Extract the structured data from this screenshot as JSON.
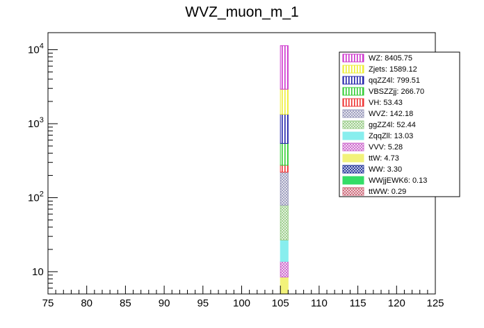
{
  "chart_data": {
    "type": "bar",
    "stacked": true,
    "title": "WVZ_muon_m_1",
    "xlabel": "",
    "ylabel": "",
    "xlim": [
      75,
      125
    ],
    "ylim": [
      5,
      17000
    ],
    "yscale": "log",
    "grid": false,
    "legend_position": "top-right",
    "bin": [
      105,
      106
    ],
    "x_ticks": [
      "75",
      "80",
      "85",
      "90",
      "95",
      "100",
      "105",
      "110",
      "115",
      "120",
      "125"
    ],
    "y_ticks": [
      {
        "value": 10,
        "base": "10",
        "exp": ""
      },
      {
        "value": 100,
        "base": "10",
        "exp": "2"
      },
      {
        "value": 1000,
        "base": "10",
        "exp": "3"
      },
      {
        "value": 10000,
        "base": "10",
        "exp": "4"
      }
    ],
    "series": [
      {
        "name": "ttWW",
        "label": "ttWW: 0.29",
        "value": 0.29,
        "color": "#cc6677",
        "pattern": "cross"
      },
      {
        "name": "WWjjEWK6",
        "label": "WWjjEWK6: 0.13",
        "value": 0.13,
        "color": "#33dd66",
        "pattern": "solid"
      },
      {
        "name": "WW",
        "label": "WW: 3.30",
        "value": 3.3,
        "color": "#223399",
        "pattern": "cross"
      },
      {
        "name": "ttW",
        "label": "ttW: 4.73",
        "value": 4.73,
        "color": "#f2f27a",
        "pattern": "solid"
      },
      {
        "name": "VVV",
        "label": "VVV: 5.28",
        "value": 5.28,
        "color": "#cc66cc",
        "pattern": "cross"
      },
      {
        "name": "ZqqZll",
        "label": "ZqqZll: 13.03",
        "value": 13.03,
        "color": "#88eeee",
        "pattern": "solid"
      },
      {
        "name": "ggZZ4l",
        "label": "ggZZ4l: 52.44",
        "value": 52.44,
        "color": "#99cc88",
        "pattern": "cross"
      },
      {
        "name": "WVZ",
        "label": "WVZ: 142.18",
        "value": 142.18,
        "color": "#9999bb",
        "pattern": "cross"
      },
      {
        "name": "VH",
        "label": "VH: 53.43",
        "value": 53.43,
        "color": "#ee3333",
        "pattern": "vertical"
      },
      {
        "name": "VBSZZjj",
        "label": "VBSZZjj: 266.70",
        "value": 266.7,
        "color": "#33cc33",
        "pattern": "vertical"
      },
      {
        "name": "qqZZ4l",
        "label": "qqZZ4l: 799.51",
        "value": 799.51,
        "color": "#2222aa",
        "pattern": "vertical"
      },
      {
        "name": "Zjets",
        "label": "Zjets: 1589.12",
        "value": 1589.12,
        "color": "#eeee33",
        "pattern": "vertical"
      },
      {
        "name": "WZ",
        "label": "WZ: 8405.75",
        "value": 8405.75,
        "color": "#cc33cc",
        "pattern": "vertical"
      }
    ]
  }
}
